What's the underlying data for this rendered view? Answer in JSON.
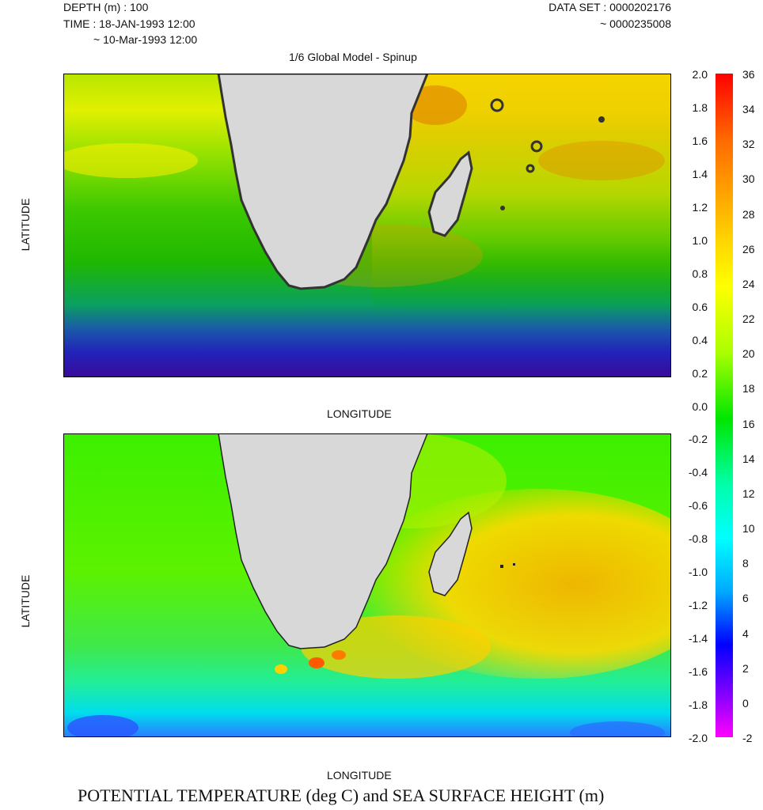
{
  "header": {
    "depth": "DEPTH (m) : 100",
    "time_start": "TIME : 18-JAN-1993 12:00",
    "time_end": "~ 10-Mar-1993 12:00",
    "dataset_start": "DATA SET : 0000202176",
    "dataset_end": "~ 0000235008",
    "subtitle": "1/6 Global Model - Spinup"
  },
  "axes": {
    "top_ylabel": "LATITUDE",
    "top_xlabel": "LONGITUDE",
    "bottom_ylabel": "LATITUDE",
    "bottom_xlabel": "LONGITUDE"
  },
  "footer_title": "POTENTIAL TEMPERATURE (deg C) and SEA SURFACE HEIGHT (m)",
  "ssh_scale": {
    "ticks": [
      "2.0",
      "1.8",
      "1.6",
      "1.4",
      "1.2",
      "1.0",
      "0.8",
      "0.6",
      "0.4",
      "0.2",
      "0.0",
      "-0.2",
      "-0.4",
      "-0.6",
      "-0.8",
      "-1.0",
      "-1.2",
      "-1.4",
      "-1.6",
      "-1.8",
      "-2.0"
    ],
    "range": [
      -2.0,
      2.0
    ]
  },
  "temperature_scale": {
    "ticks": [
      "36",
      "34",
      "32",
      "30",
      "28",
      "26",
      "24",
      "22",
      "20",
      "18",
      "16",
      "14",
      "12",
      "10",
      "8",
      "6",
      "4",
      "2",
      "0",
      "-2"
    ],
    "range": [
      -2,
      36
    ],
    "colors": [
      "#ff0000",
      "#ff6a00",
      "#ffd400",
      "#ffff00",
      "#aaff00",
      "#00e600",
      "#00ffaa",
      "#00ffff",
      "#00aaff",
      "#0000ff",
      "#7a00ff",
      "#ff00ff"
    ]
  },
  "colors": {
    "land": "#d8d8d8",
    "coast": "#333333",
    "frame": "#000000"
  }
}
